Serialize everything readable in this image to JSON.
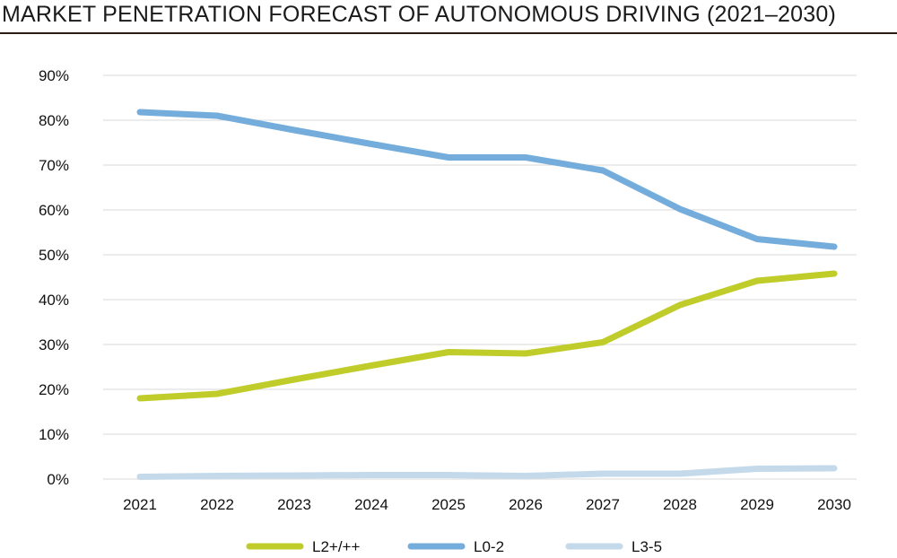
{
  "chart_data": {
    "type": "line",
    "title": "MARKET PENETRATION FORECAST OF AUTONOMOUS DRIVING (2021–2030)",
    "xlabel": "",
    "ylabel": "",
    "categories": [
      "2021",
      "2022",
      "2023",
      "2024",
      "2025",
      "2026",
      "2027",
      "2028",
      "2029",
      "2030"
    ],
    "ylim": [
      0,
      90
    ],
    "yticks": [
      0,
      10,
      20,
      30,
      40,
      50,
      60,
      70,
      80,
      90
    ],
    "ytick_labels": [
      "0%",
      "10%",
      "20%",
      "30%",
      "40%",
      "50%",
      "60%",
      "70%",
      "80%",
      "90%"
    ],
    "grid": "horizontal",
    "legend_position": "bottom",
    "series": [
      {
        "name": "L2+/++",
        "color": "#bfcc2a",
        "values": [
          18,
          19,
          22.2,
          25.3,
          28.3,
          28,
          30.5,
          38.8,
          44.2,
          45.8
        ]
      },
      {
        "name": "L0-2",
        "color": "#74addb",
        "values": [
          81.8,
          81,
          77.8,
          74.7,
          71.7,
          71.7,
          68.8,
          60.2,
          53.5,
          51.8
        ]
      },
      {
        "name": "L3-5",
        "color": "#c4daeb",
        "values": [
          0.5,
          0.7,
          0.8,
          0.9,
          0.9,
          0.7,
          1.2,
          1.2,
          2.3,
          2.4
        ]
      }
    ]
  }
}
